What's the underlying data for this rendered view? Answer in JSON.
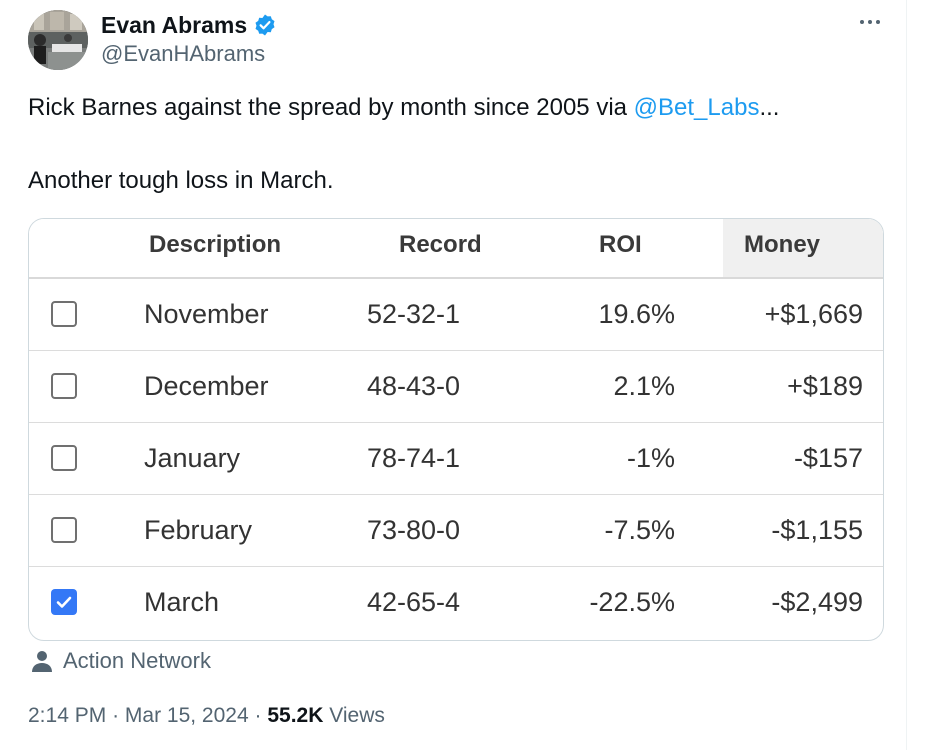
{
  "author": {
    "name": "Evan Abrams",
    "handle": "@EvanHAbrams",
    "verified_badge_color": "#1d9bf0"
  },
  "tweet": {
    "line1_text": "Rick Barnes against the spread by month since 2005 via ",
    "line1_mention": "@Bet_Labs",
    "line1_ellipsis": "...",
    "line2_text": "Another tough loss in March."
  },
  "table": {
    "headers": {
      "description": "Description",
      "record": "Record",
      "roi": "ROI",
      "money": "Money"
    },
    "rows": [
      {
        "description": "November",
        "record": "52-32-1",
        "roi": "19.6%",
        "money": "+$1,669",
        "checked": false
      },
      {
        "description": "December",
        "record": "48-43-0",
        "roi": "2.1%",
        "money": "+$189",
        "checked": false
      },
      {
        "description": "January",
        "record": "78-74-1",
        "roi": "-1%",
        "money": "-$157",
        "checked": false
      },
      {
        "description": "February",
        "record": "73-80-0",
        "roi": "-7.5%",
        "money": "-$1,155",
        "checked": false
      },
      {
        "description": "March",
        "record": "42-65-4",
        "roi": "-22.5%",
        "money": "-$2,499",
        "checked": true
      }
    ],
    "checkbox_checked_color": "#3478f6"
  },
  "source": {
    "label": "Action Network"
  },
  "meta": {
    "time": "2:14 PM",
    "separator": "·",
    "date": "Mar 15, 2024",
    "views_count": "55.2K",
    "views_label": "Views"
  },
  "colors": {
    "link": "#1d9bf0",
    "secondary_text": "#536471"
  }
}
